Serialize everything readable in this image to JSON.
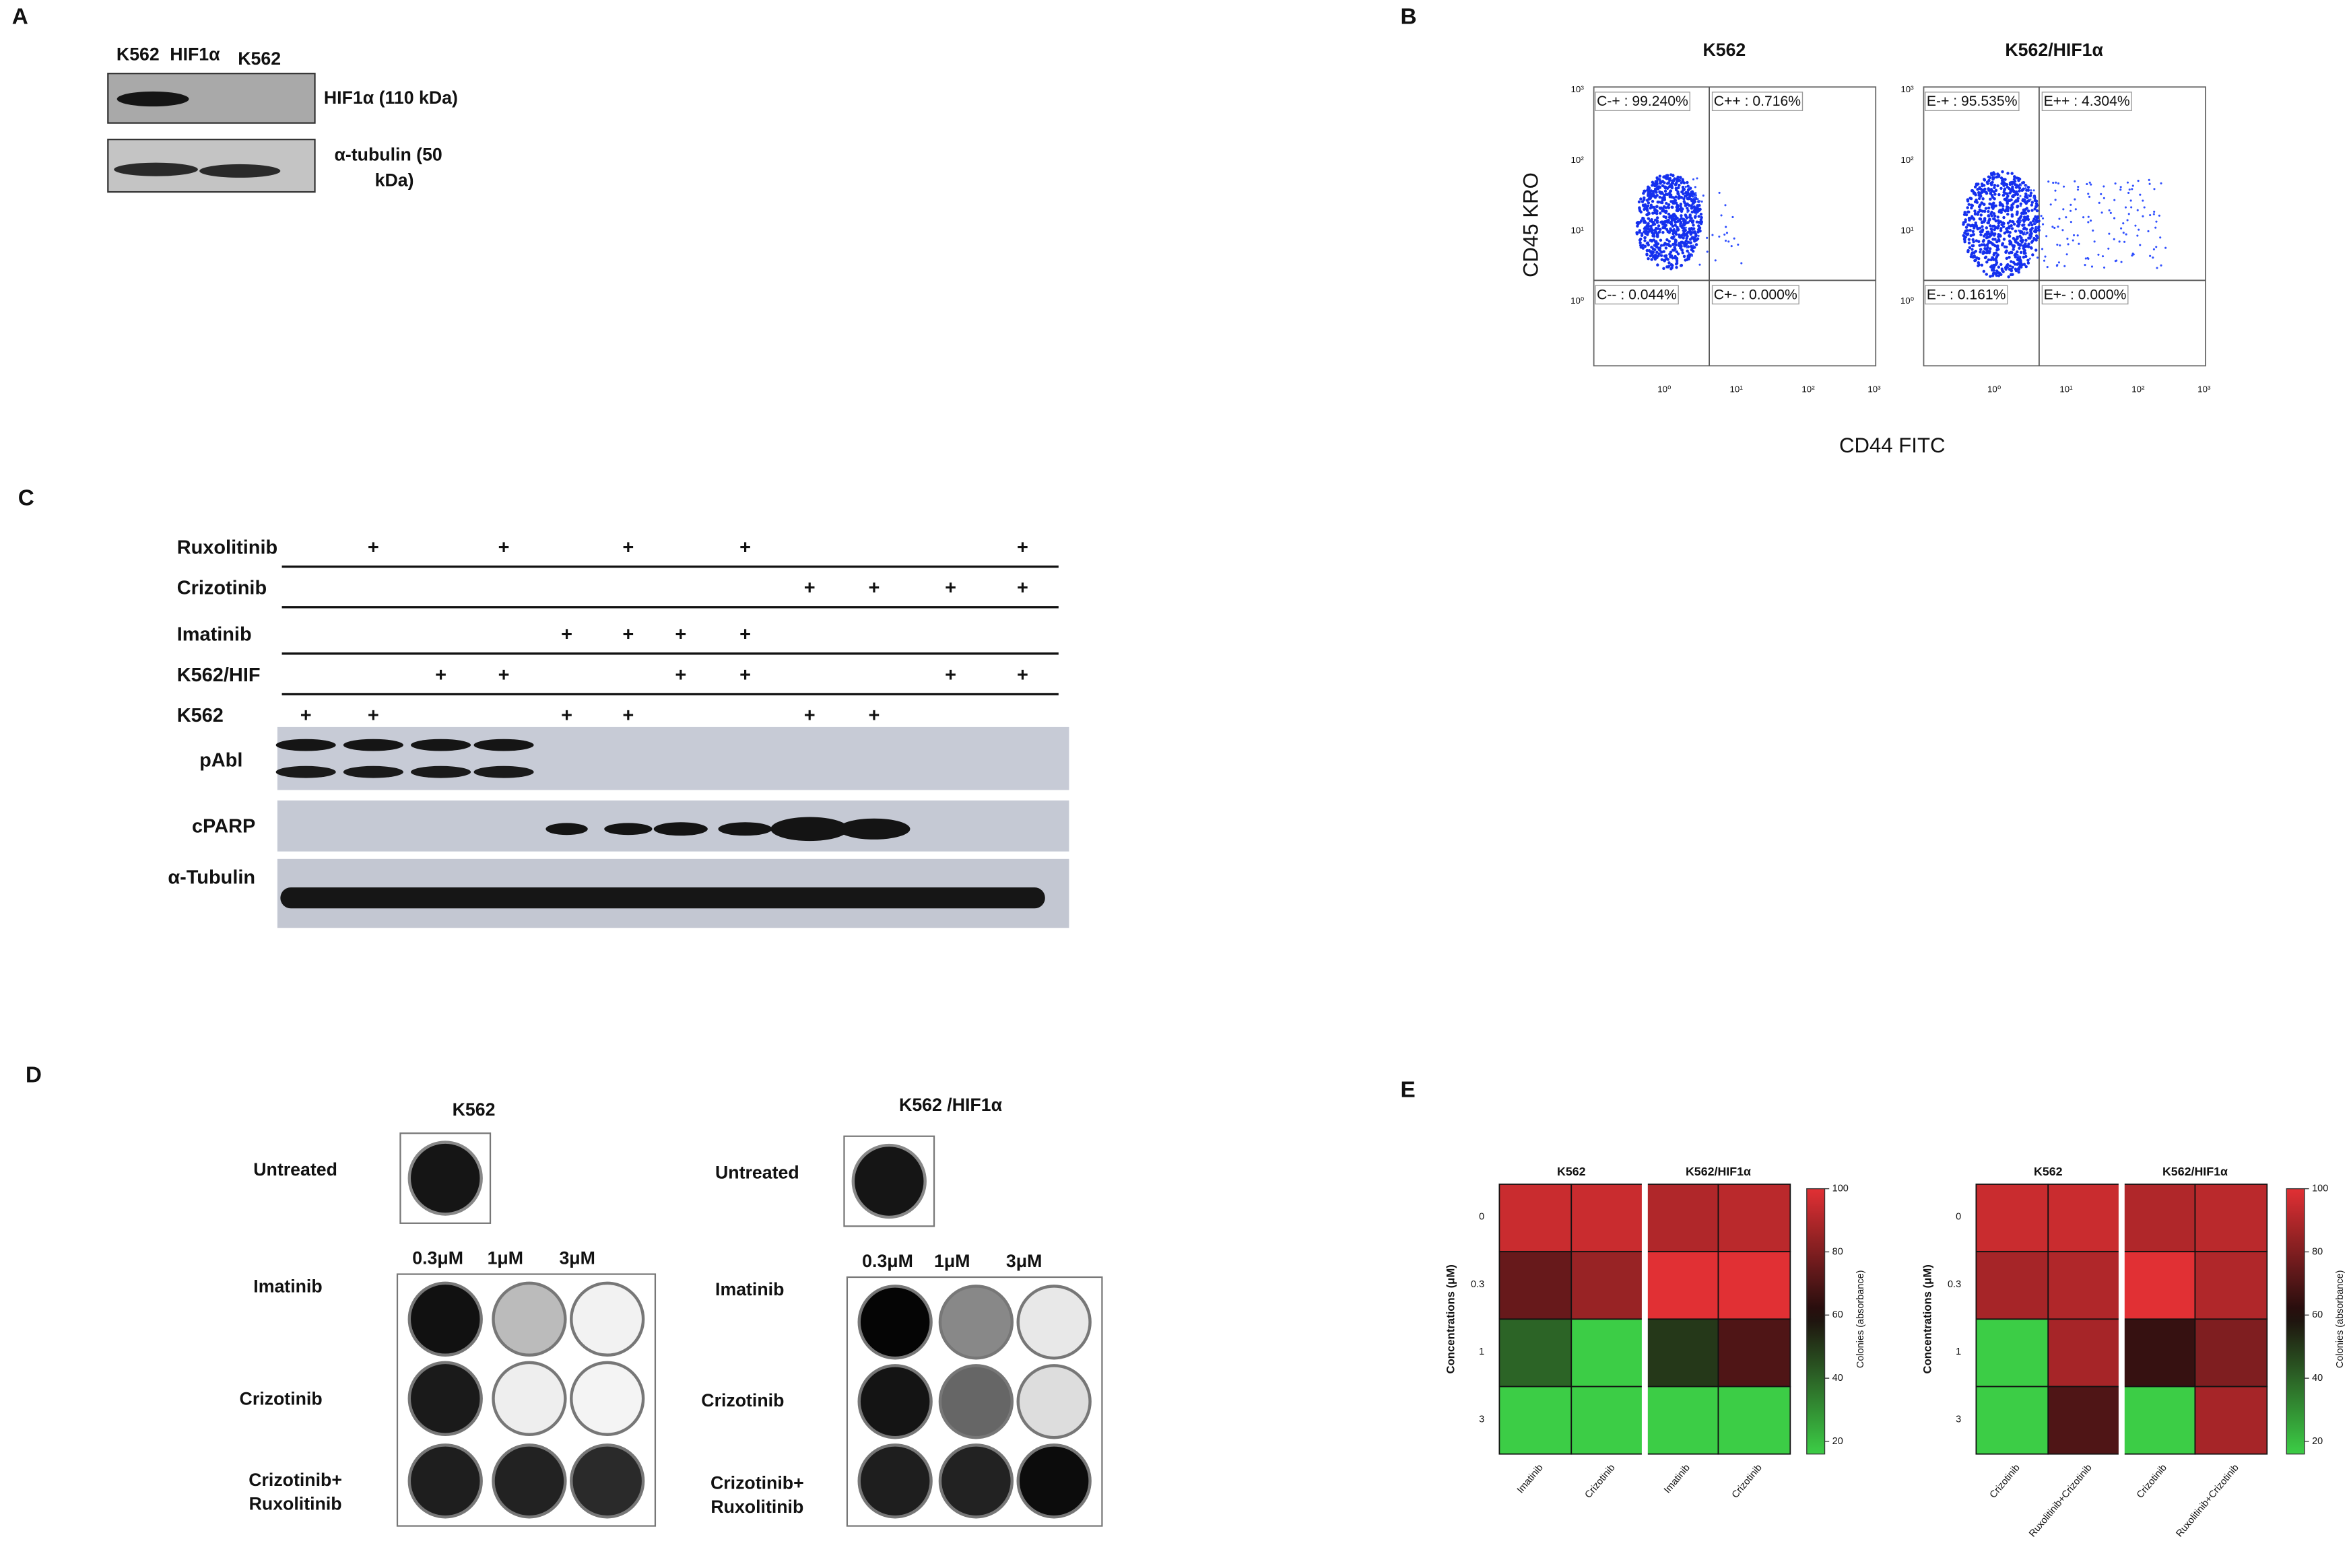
{
  "panel_a": {
    "letter": "A",
    "lanes": [
      "K562",
      "HIF1α",
      "K562"
    ],
    "blots": [
      [
        "HIF1α (110 kDa)"
      ],
      [
        "α-tubulin  (50",
        "kDa)"
      ]
    ]
  },
  "panel_b": {
    "letter": "B",
    "y_label": "CD45 KRO",
    "x_label": "CD44  FITC",
    "ticks": [
      "10⁰",
      "10¹",
      "10²",
      "10³"
    ],
    "plots": [
      {
        "title": "K562",
        "quadrants": [
          "C-+ : 99.240%",
          "C++ : 0.716%",
          "C-- : 0.044%",
          "C+- : 0.000%"
        ]
      },
      {
        "title": "K562/HIF1α",
        "quadrants": [
          "E-+ : 95.535%",
          "E++ : 4.304%",
          "E-- : 0.161%",
          "E+- : 0.000%"
        ]
      }
    ]
  },
  "panel_c": {
    "letter": "C",
    "rows": [
      {
        "label": "Ruxolitinib",
        "marks": [
          null,
          "+",
          null,
          "+",
          null,
          "+",
          null,
          "+",
          null,
          null,
          null,
          "+"
        ]
      },
      {
        "label": "Crizotinib",
        "marks": [
          null,
          null,
          null,
          null,
          null,
          null,
          null,
          null,
          "+",
          "+",
          "+",
          "+"
        ]
      },
      {
        "label": "Imatinib",
        "marks": [
          null,
          null,
          null,
          null,
          "+",
          "+",
          "+",
          "+",
          null,
          null,
          null,
          null
        ]
      },
      {
        "label": "K562/HIF",
        "marks": [
          null,
          null,
          "+",
          "+",
          null,
          null,
          "+",
          "+",
          null,
          null,
          "+",
          "+"
        ]
      },
      {
        "label": "K562",
        "marks": [
          "+",
          "+",
          null,
          null,
          "+",
          "+",
          null,
          null,
          "+",
          "+",
          null,
          null
        ]
      }
    ],
    "blots": [
      "pAbl",
      "cPARP",
      "α-Tubulin"
    ]
  },
  "panel_d": {
    "letter": "D",
    "groups": [
      {
        "title": "K562",
        "untreated": "Untreated",
        "concentrations": [
          "0.3μM",
          "1μM",
          "3μM"
        ],
        "rows": [
          [
            "Imatinib"
          ],
          [
            "Crizotinib"
          ],
          [
            "Crizotinib+",
            "Ruxolitinib"
          ]
        ]
      },
      {
        "title": "K562 /HIF1α",
        "untreated": "Untreated",
        "concentrations": [
          "0.3μM",
          "1μM",
          "3μM"
        ],
        "rows": [
          [
            "Imatinib"
          ],
          [
            "Crizotinib"
          ],
          [
            "Crizotinib+",
            "Ruxolitinib"
          ]
        ]
      }
    ]
  },
  "panel_e": {
    "letter": "E",
    "heatmaps": [
      {
        "type": "heatmap",
        "groups": [
          "K562",
          "K562/HIF1α"
        ],
        "columns": [
          "Imatinib",
          "Crizotinib",
          "Imatinib",
          "Crizotinib"
        ],
        "rows": [
          "0",
          "0.3",
          "1",
          "3"
        ],
        "y_label": "Concentrations (μM)",
        "values": [
          [
            95,
            95,
            90,
            92
          ],
          [
            75,
            85,
            100,
            100
          ],
          [
            40,
            16,
            50,
            70
          ],
          [
            16,
            16,
            16,
            16
          ]
        ],
        "colorbar": {
          "label": "Colonies (absorbance)",
          "lim": [
            16,
            100
          ],
          "ticks": [
            20,
            40,
            60,
            80,
            100
          ]
        }
      },
      {
        "type": "heatmap",
        "groups": [
          "K562",
          "K562/HIF1α"
        ],
        "columns": [
          "Crizotinib",
          "Ruxolitinib+Crizotinib",
          "Crizotinib",
          "Ruxolitinib+Crizotinib"
        ],
        "rows": [
          "0",
          "0.3",
          "1",
          "3"
        ],
        "y_label": "Concentrations (μM)",
        "values": [
          [
            95,
            95,
            90,
            92
          ],
          [
            88,
            90,
            100,
            90
          ],
          [
            16,
            88,
            65,
            80
          ],
          [
            16,
            70,
            16,
            88
          ]
        ],
        "colorbar": {
          "label": "Colonies (absorbance)",
          "lim": [
            16,
            100
          ],
          "ticks": [
            20,
            40,
            60,
            80,
            100
          ]
        }
      }
    ]
  }
}
